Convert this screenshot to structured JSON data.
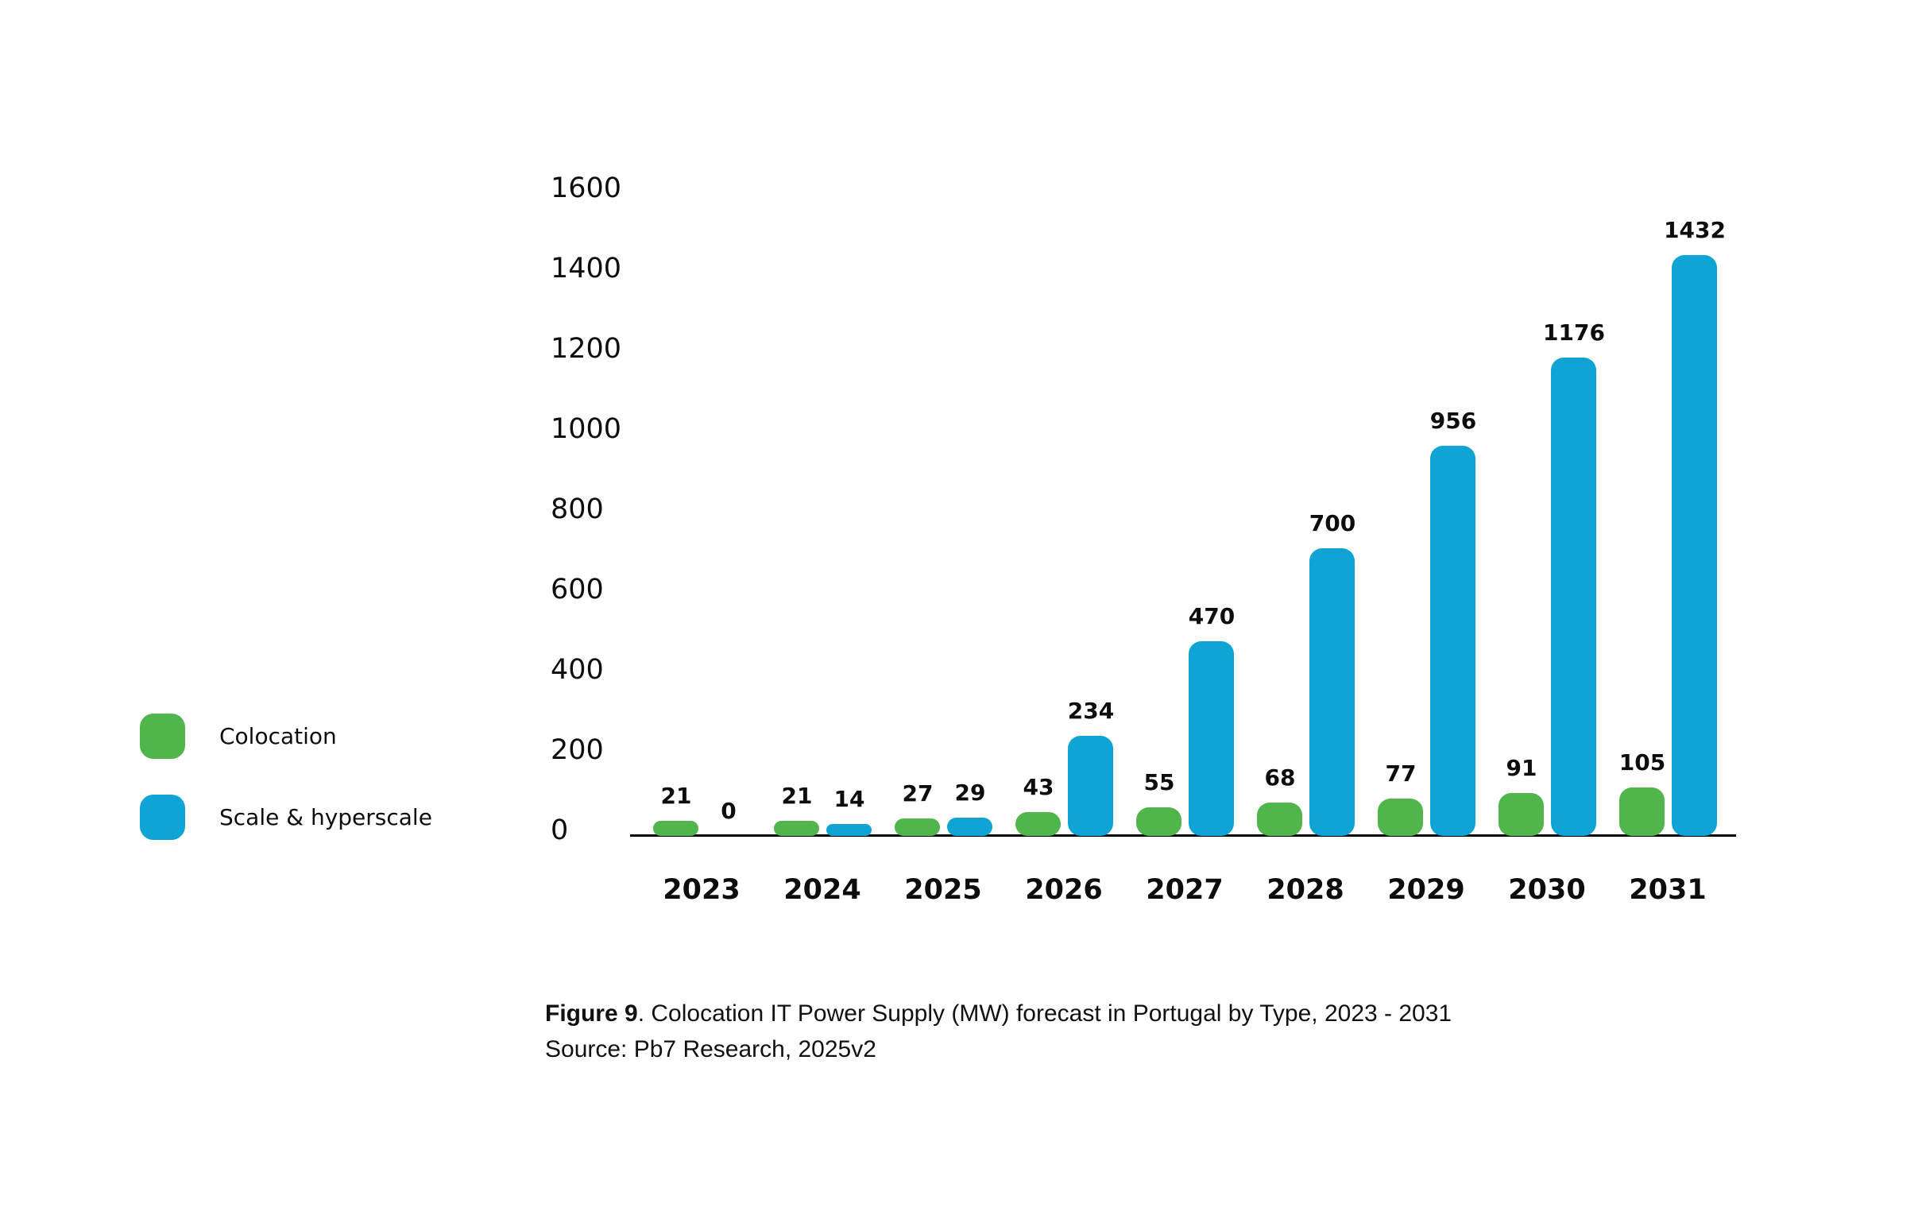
{
  "chart_data": {
    "type": "bar",
    "categories": [
      "2023",
      "2024",
      "2025",
      "2026",
      "2027",
      "2028",
      "2029",
      "2030",
      "2031"
    ],
    "series": [
      {
        "name": "Colocation",
        "color": "#50b54a",
        "values": [
          21,
          21,
          27,
          43,
          55,
          68,
          77,
          91,
          105
        ]
      },
      {
        "name": "Scale & hyperscale",
        "color": "#0fa4d3",
        "values": [
          0,
          14,
          29,
          234,
          470,
          700,
          956,
          1176,
          1432
        ]
      }
    ],
    "ylim": [
      0,
      1600
    ],
    "yticks": [
      0,
      200,
      400,
      600,
      800,
      1000,
      1200,
      1400,
      1600
    ],
    "grid": false,
    "legend_position": "left-middle",
    "value_labels": true,
    "xlabel": "",
    "ylabel": ""
  },
  "caption": {
    "figure_label": "Figure 9",
    "title": ". Colocation IT Power Supply (MW) forecast in Portugal by Type, 2023 - 2031",
    "source": "Source: Pb7 Research, 2025v2"
  },
  "colors": {
    "axis_line": "#000000",
    "text": "#0d0d0d",
    "background": "#ffffff"
  }
}
